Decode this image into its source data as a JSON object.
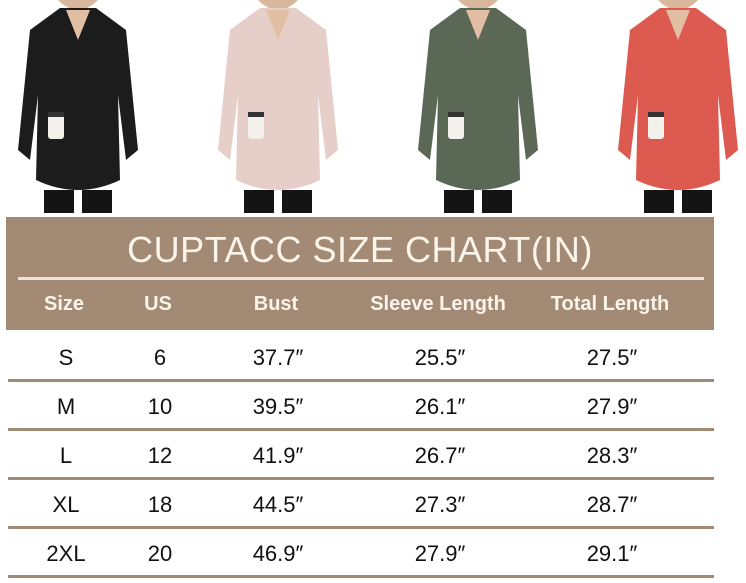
{
  "product_photos": [
    {
      "color_name": "black",
      "color": "#1c1c1c"
    },
    {
      "color_name": "pink",
      "color": "#e6cfc8"
    },
    {
      "color_name": "olive green",
      "color": "#5b6855"
    },
    {
      "color_name": "red",
      "color": "#dc5a50"
    }
  ],
  "size_chart": {
    "title": "CUPTACC SIZE CHART(IN)",
    "header_color": "#a38a74",
    "columns": [
      "Size",
      "US",
      "Bust",
      "Sleeve Length",
      "Total Length"
    ],
    "rows": [
      [
        "S",
        "6",
        "37.7″",
        "25.5″",
        "27.5″"
      ],
      [
        "M",
        "10",
        "39.5″",
        "26.1″",
        "27.9″"
      ],
      [
        "L",
        "12",
        "41.9″",
        "26.7″",
        "28.3″"
      ],
      [
        "XL",
        "18",
        "44.5″",
        "27.3″",
        "28.7″"
      ],
      [
        "2XL",
        "20",
        "46.9″",
        "27.9″",
        "29.1″"
      ]
    ]
  }
}
